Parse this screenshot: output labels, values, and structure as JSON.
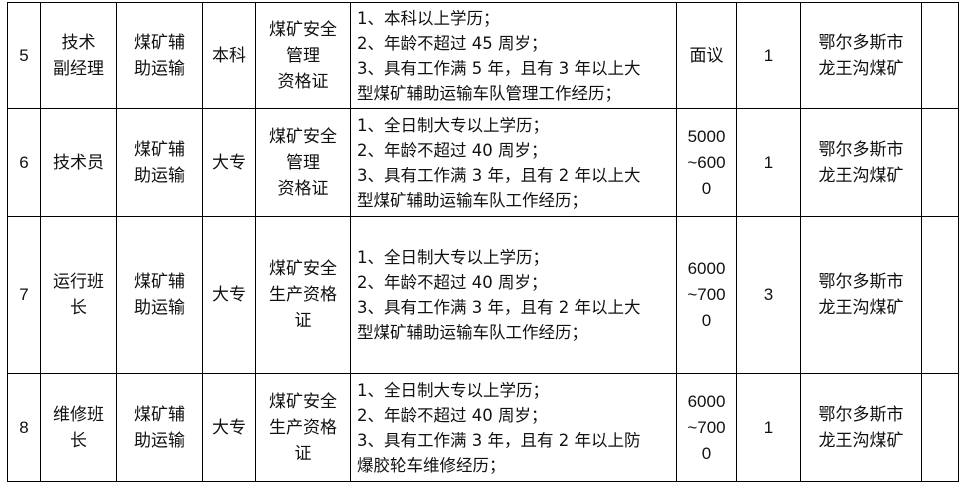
{
  "rows": [
    {
      "no": "5",
      "position": [
        "技术",
        "副经理"
      ],
      "major": [
        "煤矿辅",
        "助运输"
      ],
      "education": "本科",
      "certificate": [
        "煤矿安全",
        "管理",
        "资格证"
      ],
      "requirements": [
        "1、本科以上学历；",
        "2、年龄不超过 45 周岁；",
        "3、具有工作满 5 年，且有 3 年以上大",
        "型煤矿辅助运输车队管理工作经历；"
      ],
      "salary": [
        "面议"
      ],
      "count": "1",
      "location": [
        "鄂尔多斯市",
        "龙王沟煤矿"
      ],
      "note": ""
    },
    {
      "no": "6",
      "position": [
        "技术员"
      ],
      "major": [
        "煤矿辅",
        "助运输"
      ],
      "education": "大专",
      "certificate": [
        "煤矿安全",
        "管理",
        "资格证"
      ],
      "requirements": [
        "1、全日制大专以上学历；",
        "2、年龄不超过 40 周岁；",
        "3、具有工作满 3 年，且有 2 年以上大",
        "型煤矿辅助运输车队工作经历；"
      ],
      "salary": [
        "5000",
        "~600",
        "0"
      ],
      "count": "1",
      "location": [
        "鄂尔多斯市",
        "龙王沟煤矿"
      ],
      "note": ""
    },
    {
      "no": "7",
      "position": [
        "运行班",
        "长"
      ],
      "major": [
        "煤矿辅",
        "助运输"
      ],
      "education": "大专",
      "certificate": [
        "煤矿安全",
        "生产资格",
        "证"
      ],
      "requirements": [
        "1、全日制大专以上学历；",
        "2、年龄不超过 40 周岁；",
        "3、具有工作满 3 年，且有 2 年以上大",
        "型煤矿辅助运输车队工作经历；"
      ],
      "salary": [
        "6000",
        "~700",
        "0"
      ],
      "count": "3",
      "location": [
        "鄂尔多斯市",
        "龙王沟煤矿"
      ],
      "note": ""
    },
    {
      "no": "8",
      "position": [
        "维修班",
        "长"
      ],
      "major": [
        "煤矿辅",
        "助运输"
      ],
      "education": "大专",
      "certificate": [
        "煤矿安全",
        "生产资格",
        "证"
      ],
      "requirements": [
        "1、全日制大专以上学历；",
        "2、年龄不超过 40 周岁；",
        "3、具有工作满 3 年，且有 2 年以上防",
        "爆胶轮车维修经历；"
      ],
      "salary": [
        "6000",
        "~700",
        "0"
      ],
      "count": "1",
      "location": [
        "鄂尔多斯市",
        "龙王沟煤矿"
      ],
      "note": ""
    }
  ]
}
